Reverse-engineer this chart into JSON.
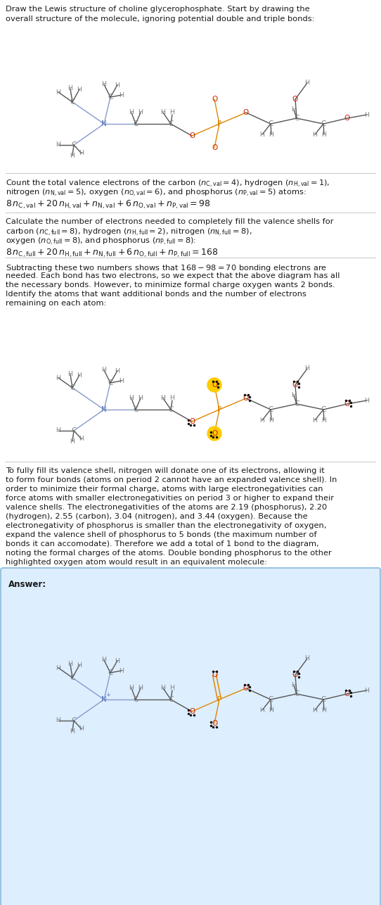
{
  "bg_color": "#ffffff",
  "answer_bg": "#ddeeff",
  "answer_border": "#88bbdd",
  "text_color": "#1a1a1a",
  "C_color": "#808080",
  "H_color": "#808080",
  "N_color": "#5577bb",
  "O_color": "#cc2200",
  "P_color": "#dd8800",
  "bond_color": "#555555",
  "N_bond_color": "#8899cc",
  "O_highlight": "#ffcc00",
  "dot_color": "#111111"
}
